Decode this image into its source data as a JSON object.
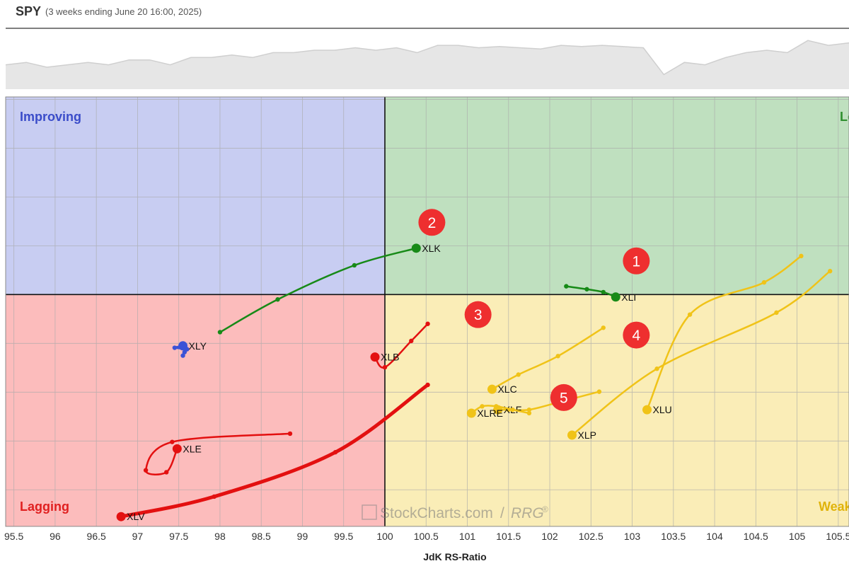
{
  "header": {
    "symbol": "SPY",
    "period": "(3 weeks ending June 20 16:00, 2025)"
  },
  "benchmark_line": {
    "values": [
      60,
      62,
      58,
      60,
      62,
      60,
      64,
      64,
      60,
      66,
      66,
      68,
      66,
      70,
      70,
      72,
      72,
      74,
      72,
      74,
      70,
      76,
      76,
      74,
      75,
      74,
      73,
      76,
      75,
      76,
      75,
      74,
      52,
      62,
      60,
      66,
      70,
      72,
      70,
      80,
      76,
      78
    ]
  },
  "colors": {
    "improving": "#c8cdf2",
    "leading": "#bfe0bf",
    "weakening": "#faedb7",
    "lagging": "#fcbcbc",
    "green": "#178a17",
    "blue": "#3b52d6",
    "red": "#e31010",
    "yellow": "#f0c318",
    "badge": "#ee2f2f"
  },
  "quadrants": {
    "improving": "Improving",
    "leading": "Leading",
    "weakening": "Weakening",
    "lagging": "Lagging"
  },
  "watermark": {
    "brand": "StockCharts.com",
    "slash": "/",
    "rrg": "RRG",
    "reg": "®"
  },
  "chart_data": {
    "type": "scatter",
    "subtype": "relative-rotation-graph",
    "xlabel": "JdK RS-Ratio",
    "x_ticks": [
      "95.5",
      "96",
      "96.5",
      "97",
      "97.5",
      "98",
      "98.5",
      "99",
      "99.5",
      "100",
      "100.5",
      "101",
      "101.5",
      "102",
      "102.5",
      "103",
      "103.5",
      "104",
      "104.5",
      "105",
      "105.5"
    ],
    "xlim": [
      95.4,
      105.63
    ],
    "ylim": [
      95.25,
      104.05
    ],
    "center": [
      100,
      100
    ],
    "grid": true,
    "series": [
      {
        "name": "XLK",
        "color": "green",
        "width": 2.5,
        "label_dx": 8,
        "points": [
          [
            98.0,
            99.23
          ],
          [
            98.7,
            99.9
          ],
          [
            99.63,
            100.6
          ],
          [
            100.38,
            100.95
          ]
        ]
      },
      {
        "name": "XLI",
        "color": "green",
        "width": 2.5,
        "label_dx": 8,
        "points": [
          [
            102.2,
            100.17
          ],
          [
            102.45,
            100.11
          ],
          [
            102.65,
            100.05
          ],
          [
            102.8,
            99.95
          ]
        ]
      },
      {
        "name": "XLY",
        "color": "blue",
        "width": 2.5,
        "label_dx": 8,
        "points": [
          [
            97.55,
            98.75
          ],
          [
            97.57,
            98.82
          ],
          [
            97.6,
            98.88
          ],
          [
            97.45,
            98.91
          ],
          [
            97.55,
            98.95
          ]
        ]
      },
      {
        "name": "XLB",
        "color": "red",
        "width": 2.5,
        "label_dx": 8,
        "points": [
          [
            100.52,
            99.4
          ],
          [
            100.32,
            99.05
          ],
          [
            100.0,
            98.51
          ],
          [
            99.88,
            98.72
          ]
        ]
      },
      {
        "name": "XLE",
        "color": "red",
        "width": 2.5,
        "label_dx": 8,
        "points": [
          [
            98.85,
            97.15
          ],
          [
            97.42,
            96.98
          ],
          [
            97.1,
            96.4
          ],
          [
            97.35,
            96.36
          ],
          [
            97.48,
            96.84
          ]
        ]
      },
      {
        "name": "XLV",
        "color": "red",
        "width": 5,
        "label_dx": 8,
        "points": [
          [
            100.52,
            98.15
          ],
          [
            99.4,
            96.77
          ],
          [
            97.93,
            95.86
          ],
          [
            96.8,
            95.45
          ]
        ]
      },
      {
        "name": "XLC",
        "color": "yellow",
        "width": 2.5,
        "label_dx": 8,
        "points": [
          [
            102.65,
            99.32
          ],
          [
            102.1,
            98.74
          ],
          [
            101.62,
            98.36
          ],
          [
            101.3,
            98.06
          ]
        ]
      },
      {
        "name": "XLF",
        "color": "yellow",
        "width": 2.5,
        "label_dx": 8,
        "points": [
          [
            102.6,
            98.01
          ],
          [
            102.1,
            97.79
          ],
          [
            101.75,
            97.64
          ],
          [
            101.5,
            97.64
          ],
          [
            101.37,
            97.64
          ]
        ]
      },
      {
        "name": "XLRE",
        "color": "yellow",
        "width": 2.5,
        "label_dx": 8,
        "points": [
          [
            101.75,
            97.57
          ],
          [
            101.55,
            97.64
          ],
          [
            101.35,
            97.71
          ],
          [
            101.18,
            97.71
          ],
          [
            101.05,
            97.57
          ]
        ]
      },
      {
        "name": "XLU",
        "color": "yellow",
        "width": 2.5,
        "label_dx": 8,
        "points": [
          [
            105.05,
            100.79
          ],
          [
            104.6,
            100.25
          ],
          [
            103.7,
            99.59
          ],
          [
            103.18,
            97.64
          ]
        ]
      },
      {
        "name": "XLP",
        "color": "yellow",
        "width": 2.5,
        "label_dx": 8,
        "points": [
          [
            105.4,
            100.48
          ],
          [
            104.75,
            99.63
          ],
          [
            103.3,
            98.48
          ],
          [
            102.27,
            97.12
          ]
        ]
      }
    ],
    "annotations": [
      {
        "text": "1",
        "at": [
          103.05,
          100.69
        ]
      },
      {
        "text": "2",
        "at": [
          100.57,
          101.48
        ]
      },
      {
        "text": "3",
        "at": [
          101.13,
          99.59
        ]
      },
      {
        "text": "4",
        "at": [
          103.05,
          99.17
        ]
      },
      {
        "text": "5",
        "at": [
          102.17,
          97.89
        ]
      }
    ]
  }
}
